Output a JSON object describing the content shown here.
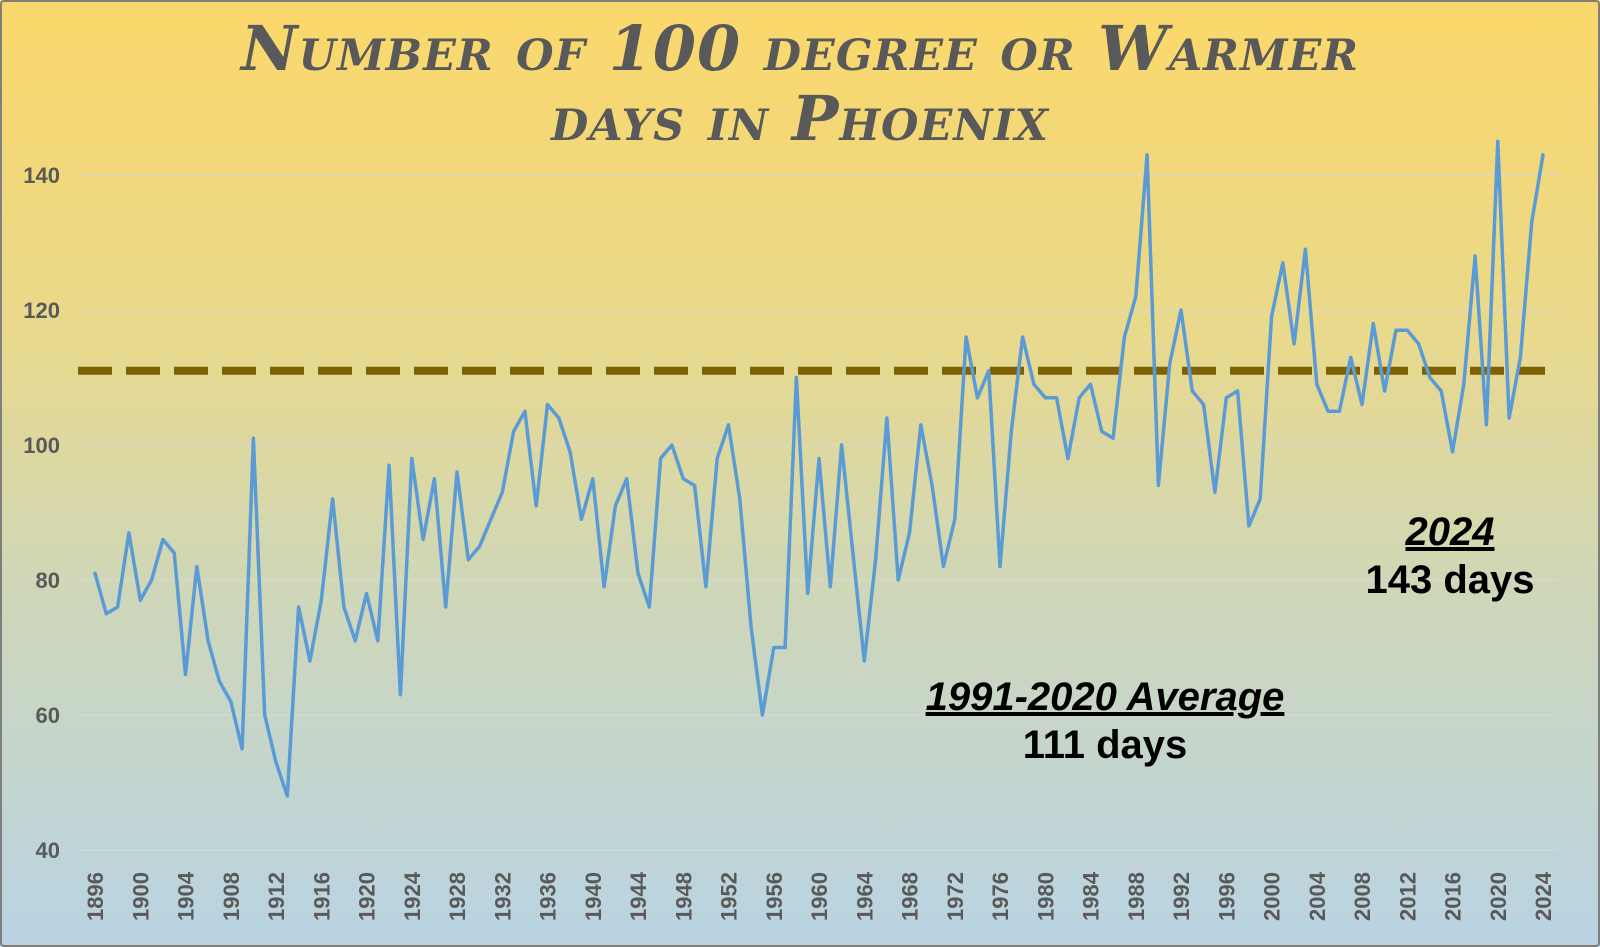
{
  "chart_data": {
    "type": "line",
    "title_line1": "Number of 100 degree or Warmer",
    "title_line2": "days in Phoenix",
    "xlabel": "",
    "ylabel": "",
    "ylim": [
      40,
      150
    ],
    "yticks": [
      40,
      60,
      80,
      100,
      120,
      140
    ],
    "xtick_labels": [
      1896,
      1900,
      1904,
      1908,
      1912,
      1916,
      1920,
      1924,
      1928,
      1932,
      1936,
      1940,
      1944,
      1948,
      1952,
      1956,
      1960,
      1964,
      1968,
      1972,
      1976,
      1980,
      1984,
      1988,
      1992,
      1996,
      2000,
      2004,
      2008,
      2012,
      2016,
      2020,
      2024
    ],
    "x_start": 1896,
    "series": [
      {
        "values": [
          81,
          75,
          76,
          87,
          77,
          80,
          86,
          84,
          66,
          82,
          71,
          65,
          62,
          55,
          101,
          60,
          53,
          48,
          76,
          68,
          77,
          92,
          76,
          71,
          78,
          71,
          97,
          63,
          98,
          86,
          95,
          76,
          96,
          83,
          85,
          89,
          93,
          102,
          105,
          91,
          106,
          104,
          99,
          89,
          95,
          79,
          91,
          95,
          81,
          76,
          98,
          100,
          95,
          94,
          79,
          98,
          103,
          92,
          73,
          60,
          70,
          70,
          110,
          78,
          98,
          79,
          100,
          84,
          68,
          83,
          104,
          80,
          87,
          103,
          94,
          82,
          89,
          116,
          107,
          111,
          82,
          102,
          116,
          109,
          107,
          107,
          98,
          107,
          109,
          102,
          101,
          116,
          122,
          143,
          94,
          112,
          120,
          108,
          106,
          93,
          107,
          108,
          88,
          92,
          119,
          127,
          115,
          129,
          109,
          105,
          105,
          113,
          106,
          118,
          108,
          117,
          117,
          115,
          110,
          108,
          99,
          109,
          128,
          103,
          145,
          104,
          113,
          133,
          143
        ],
        "color": "#5b9bd5"
      }
    ],
    "reference_line": {
      "value": 111,
      "color": "#7f6000",
      "style": "dashed"
    },
    "annotations": [
      {
        "heading": "1991-2020 Average",
        "text": "111 days"
      },
      {
        "heading": "2024",
        "text": "143 days"
      }
    ],
    "grid": "horizontal"
  }
}
